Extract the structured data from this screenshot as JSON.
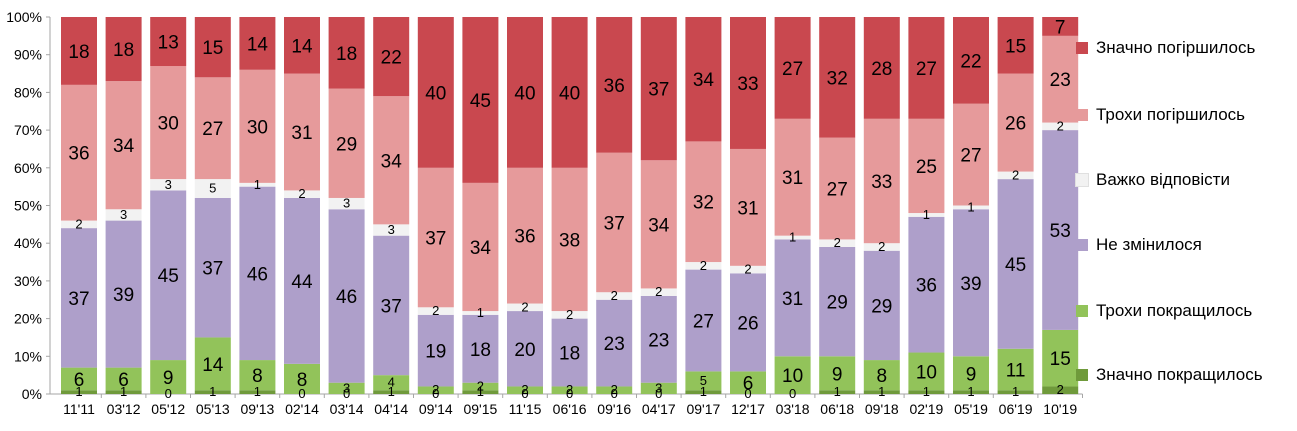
{
  "chart_data": {
    "type": "bar",
    "stacked": true,
    "categories": [
      "11'11",
      "03'12",
      "05'12",
      "05'13",
      "09'13",
      "02'14",
      "03'14",
      "04'14",
      "09'14",
      "09'15",
      "11'15",
      "06'16",
      "09'16",
      "04'17",
      "09'17",
      "12'17",
      "03'18",
      "06'18",
      "09'18",
      "02'19",
      "05'19",
      "06'19",
      "10'19"
    ],
    "ylim": [
      0,
      100
    ],
    "yticks": [
      "0%",
      "10%",
      "20%",
      "30%",
      "40%",
      "50%",
      "60%",
      "70%",
      "80%",
      "90%",
      "100%"
    ],
    "grid": false,
    "legend_position": "right",
    "series": [
      {
        "name": "Значно покращилось",
        "color": "#6f9a3b",
        "values": [
          1,
          1,
          0,
          1,
          1,
          0,
          0,
          1,
          0,
          1,
          0,
          0,
          0,
          0,
          1,
          0,
          0,
          1,
          1,
          1,
          1,
          1,
          2
        ]
      },
      {
        "name": "Трохи покращилось",
        "color": "#92c35a",
        "values": [
          6,
          6,
          9,
          14,
          8,
          8,
          3,
          4,
          2,
          2,
          2,
          2,
          2,
          3,
          5,
          6,
          10,
          9,
          8,
          10,
          9,
          11,
          15
        ]
      },
      {
        "name": "Не змінилося",
        "color": "#ae9fca",
        "values": [
          37,
          39,
          45,
          37,
          46,
          44,
          46,
          37,
          19,
          18,
          20,
          18,
          23,
          23,
          27,
          26,
          31,
          29,
          29,
          36,
          39,
          45,
          53
        ]
      },
      {
        "name": "Важко відповісти",
        "color": "#f2f2f2",
        "values": [
          2,
          3,
          3,
          5,
          1,
          2,
          3,
          3,
          2,
          1,
          2,
          2,
          2,
          2,
          2,
          2,
          1,
          2,
          2,
          1,
          1,
          2,
          2
        ]
      },
      {
        "name": "Трохи погіршилось",
        "color": "#e69a9b",
        "values": [
          36,
          34,
          30,
          27,
          30,
          31,
          29,
          34,
          37,
          34,
          36,
          38,
          37,
          34,
          32,
          31,
          31,
          27,
          33,
          25,
          27,
          26,
          23
        ]
      },
      {
        "name": "Значно погіршилось",
        "color": "#c9484f",
        "values": [
          18,
          18,
          13,
          15,
          14,
          14,
          18,
          22,
          40,
          45,
          40,
          40,
          36,
          37,
          34,
          33,
          27,
          32,
          28,
          27,
          22,
          15,
          7
        ]
      }
    ]
  }
}
